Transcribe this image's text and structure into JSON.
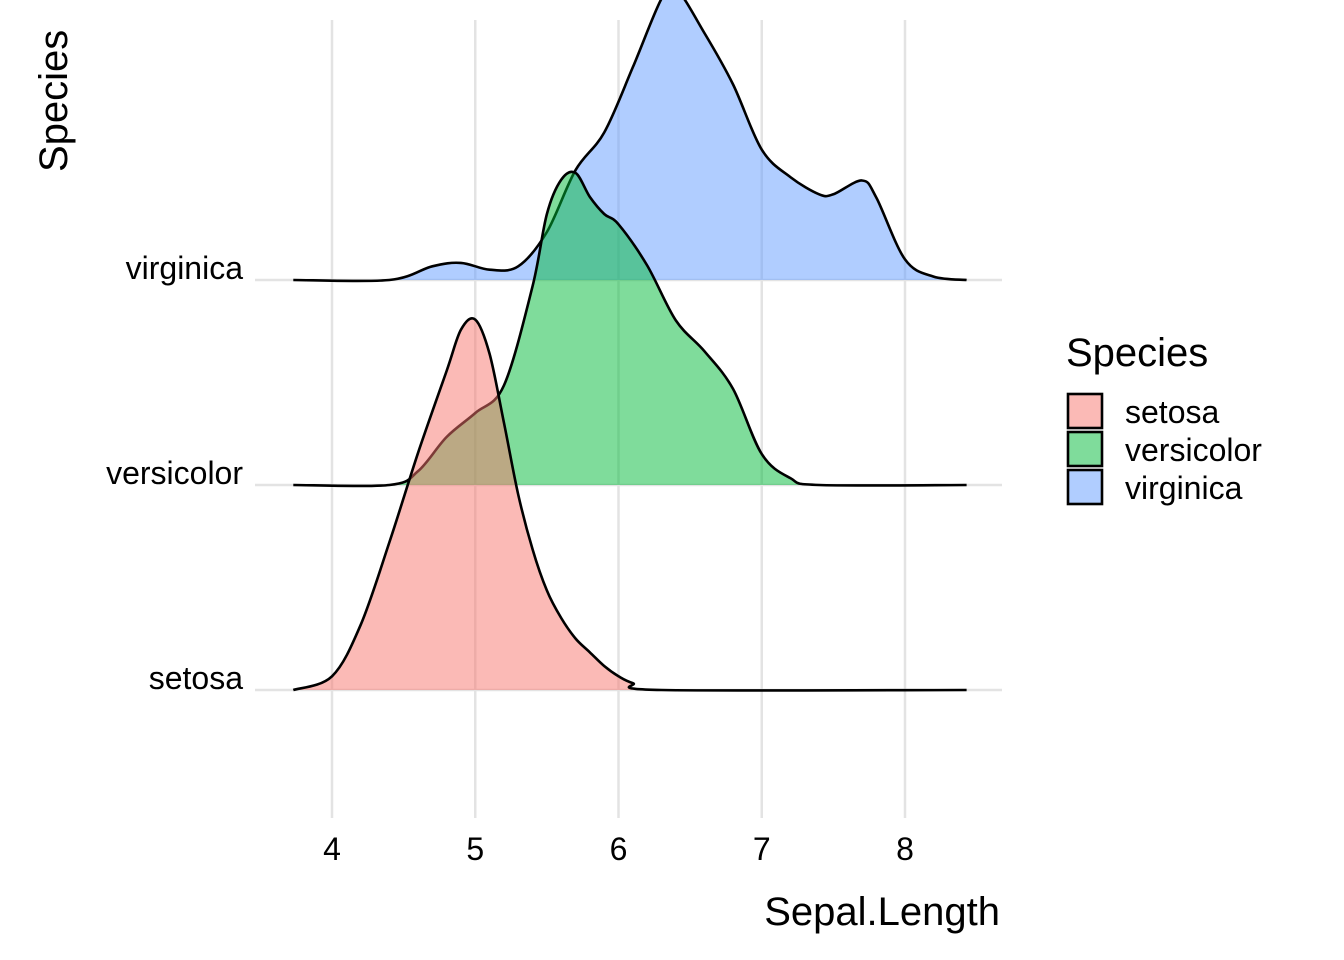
{
  "chart_data": {
    "type": "ridgeline",
    "xlabel": "Sepal.Length",
    "ylabel": "Species",
    "xlim": [
      3.73,
      8.43
    ],
    "x_ticks": [
      4,
      5,
      6,
      7,
      8
    ],
    "categories": [
      "setosa",
      "versicolor",
      "virginica"
    ],
    "grid": true,
    "legend": {
      "title": "Species",
      "placement": "right"
    },
    "series": [
      {
        "name": "setosa",
        "color": "#F8766D",
        "points": [
          [
            3.73,
            0.0
          ],
          [
            4.0,
            0.04
          ],
          [
            4.2,
            0.19
          ],
          [
            4.4,
            0.43
          ],
          [
            4.6,
            0.69
          ],
          [
            4.8,
            0.93
          ],
          [
            4.9,
            1.05
          ],
          [
            5.0,
            1.08
          ],
          [
            5.1,
            0.98
          ],
          [
            5.2,
            0.78
          ],
          [
            5.3,
            0.57
          ],
          [
            5.4,
            0.41
          ],
          [
            5.5,
            0.29
          ],
          [
            5.6,
            0.21
          ],
          [
            5.7,
            0.15
          ],
          [
            5.8,
            0.11
          ],
          [
            5.9,
            0.07
          ],
          [
            6.0,
            0.04
          ],
          [
            6.1,
            0.02
          ],
          [
            6.3,
            0.0
          ],
          [
            8.43,
            0.0
          ]
        ]
      },
      {
        "name": "versicolor",
        "color": "#00BA38",
        "points": [
          [
            3.73,
            0.0
          ],
          [
            4.4,
            0.0
          ],
          [
            4.6,
            0.04
          ],
          [
            4.8,
            0.14
          ],
          [
            5.0,
            0.21
          ],
          [
            5.2,
            0.29
          ],
          [
            5.4,
            0.58
          ],
          [
            5.5,
            0.79
          ],
          [
            5.6,
            0.89
          ],
          [
            5.7,
            0.91
          ],
          [
            5.8,
            0.84
          ],
          [
            5.9,
            0.79
          ],
          [
            6.0,
            0.76
          ],
          [
            6.2,
            0.64
          ],
          [
            6.4,
            0.48
          ],
          [
            6.6,
            0.39
          ],
          [
            6.8,
            0.28
          ],
          [
            7.0,
            0.09
          ],
          [
            7.2,
            0.02
          ],
          [
            7.4,
            0.0
          ],
          [
            8.43,
            0.0
          ]
        ]
      },
      {
        "name": "virginica",
        "color": "#619CFF",
        "points": [
          [
            3.73,
            0.0
          ],
          [
            4.4,
            0.0
          ],
          [
            4.7,
            0.04
          ],
          [
            4.9,
            0.05
          ],
          [
            5.1,
            0.03
          ],
          [
            5.3,
            0.04
          ],
          [
            5.5,
            0.14
          ],
          [
            5.7,
            0.32
          ],
          [
            5.9,
            0.43
          ],
          [
            6.1,
            0.62
          ],
          [
            6.3,
            0.82
          ],
          [
            6.4,
            0.85
          ],
          [
            6.6,
            0.72
          ],
          [
            6.8,
            0.57
          ],
          [
            7.0,
            0.38
          ],
          [
            7.2,
            0.3
          ],
          [
            7.4,
            0.25
          ],
          [
            7.5,
            0.25
          ],
          [
            7.7,
            0.29
          ],
          [
            7.8,
            0.24
          ],
          [
            8.0,
            0.06
          ],
          [
            8.2,
            0.01
          ],
          [
            8.43,
            0.0
          ]
        ]
      }
    ]
  }
}
